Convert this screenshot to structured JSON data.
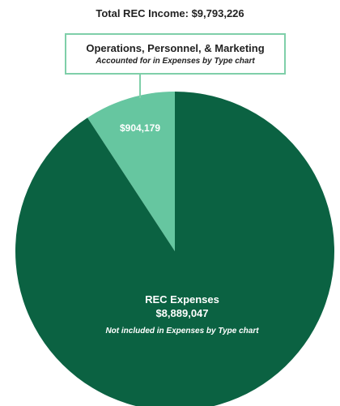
{
  "chart_data": {
    "type": "pie",
    "title": "Total REC Income: $9,793,226",
    "slices": [
      {
        "name": "Operations, Personnel, & Marketing",
        "value": 904179,
        "value_label": "$904,179",
        "note": "Accounted for in Expenses by Type chart",
        "color": "#66c6a0"
      },
      {
        "name": "REC Expenses",
        "value": 8889047,
        "value_label": "$8,889,047",
        "note": "Not included in Expenses by Type chart",
        "color": "#0b6242"
      }
    ],
    "callout_border_color": "#7fcfa9"
  }
}
